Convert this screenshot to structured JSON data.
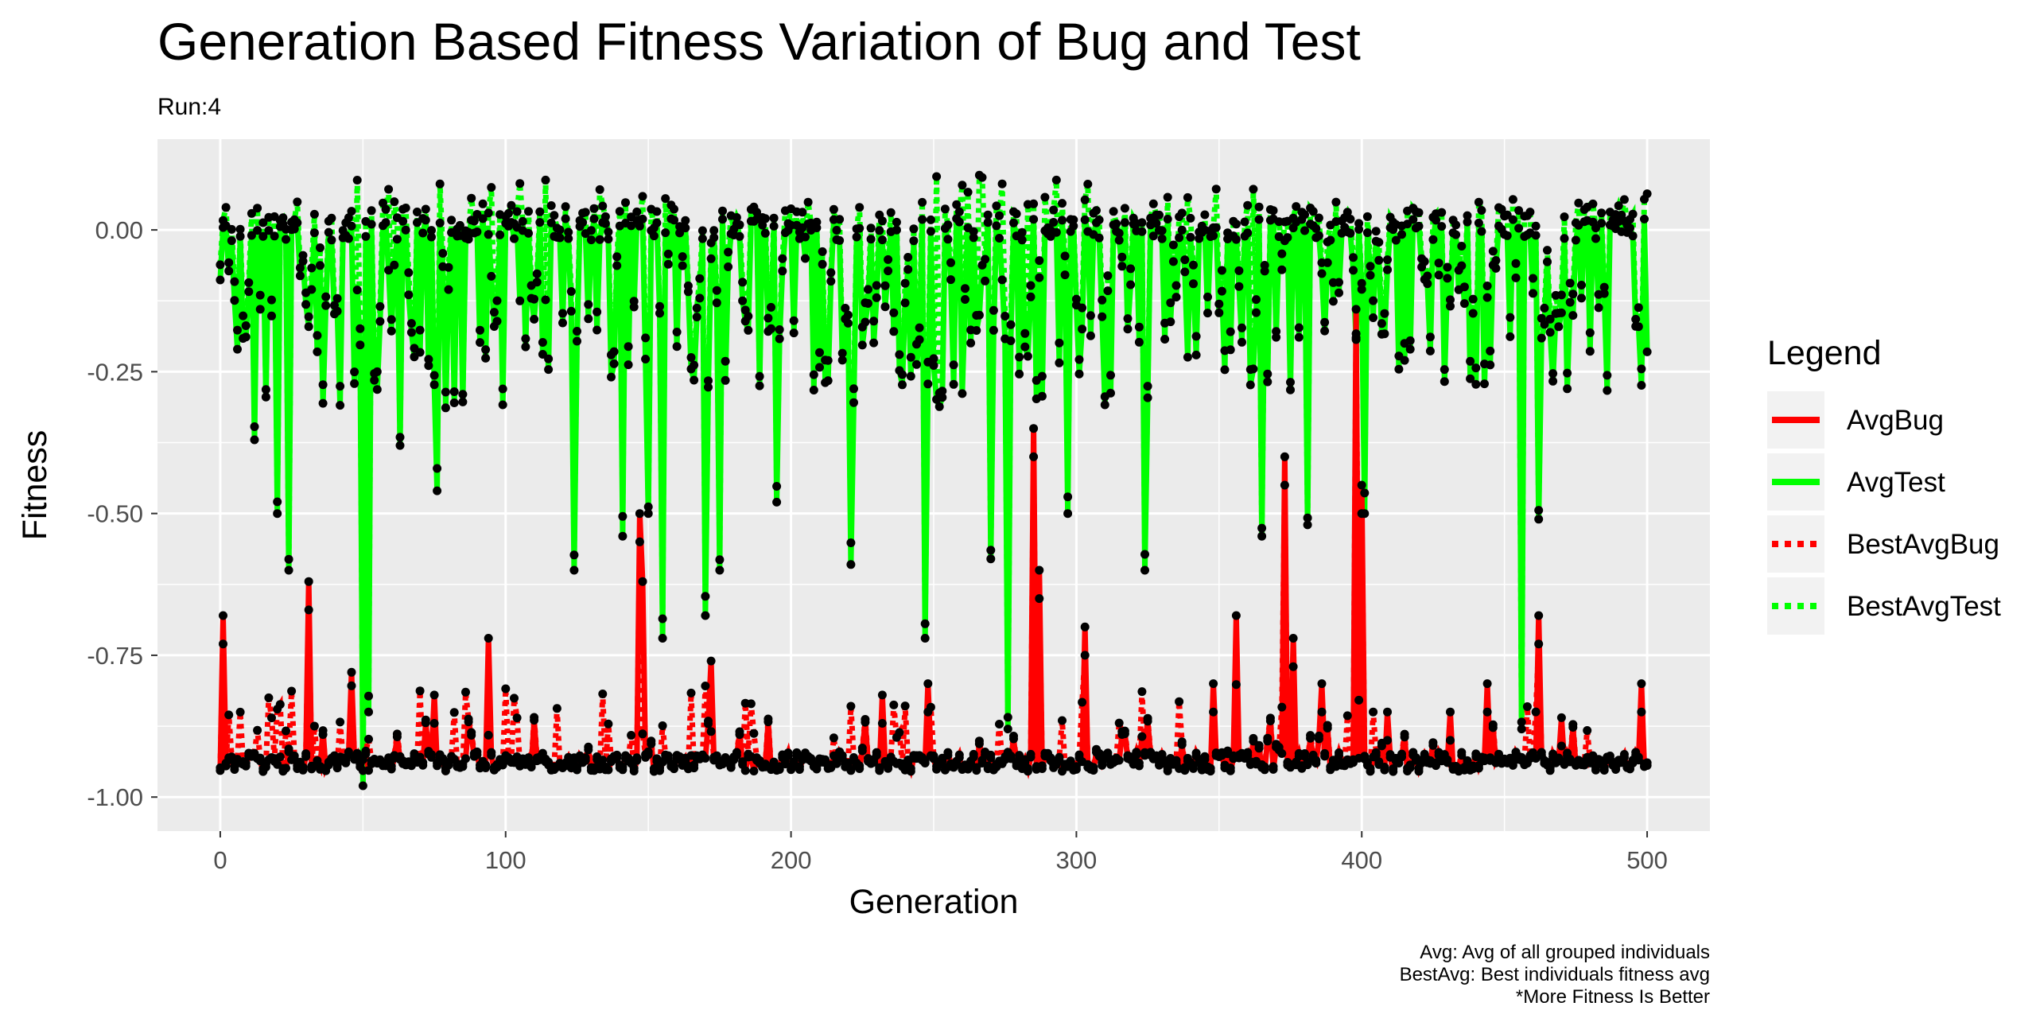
{
  "chart_data": {
    "type": "line",
    "title": "Generation Based Fitness Variation of Bug and Test",
    "subtitle": "Run:4",
    "xlabel": "Generation",
    "ylabel": "Fitness",
    "xlim": [
      -22,
      522
    ],
    "ylim": [
      -1.06,
      0.16
    ],
    "x_ticks": [
      0,
      100,
      200,
      300,
      400,
      500
    ],
    "y_ticks": [
      0.0,
      -0.25,
      -0.5,
      -0.75,
      -1.0
    ],
    "y_tick_labels": [
      "0.00",
      "-0.25",
      "-0.50",
      "-0.75",
      "-1.00"
    ],
    "grid": true,
    "legend": {
      "title": "Legend",
      "position": "right",
      "entries": [
        {
          "name": "AvgBug",
          "color": "#ff0000",
          "style": "solid"
        },
        {
          "name": "AvgTest",
          "color": "#00ff00",
          "style": "solid"
        },
        {
          "name": "BestAvgBug",
          "color": "#ff0000",
          "style": "dotted"
        },
        {
          "name": "BestAvgTest",
          "color": "#00ff00",
          "style": "dotted"
        }
      ]
    },
    "series_generator": {
      "generations": [
        0,
        500
      ],
      "avg_bug_baseline": -0.94,
      "avg_test_baseline": -0.01,
      "point_color": "#000000"
    },
    "spikes": {
      "avg_bug": [
        [
          1,
          -0.68
        ],
        [
          31,
          -0.62
        ],
        [
          46,
          -0.78
        ],
        [
          75,
          -0.82
        ],
        [
          94,
          -0.72
        ],
        [
          147,
          -0.5
        ],
        [
          148,
          -0.62
        ],
        [
          172,
          -0.76
        ],
        [
          232,
          -0.82
        ],
        [
          248,
          -0.8
        ],
        [
          285,
          -0.35
        ],
        [
          287,
          -0.6
        ],
        [
          303,
          -0.7
        ],
        [
          348,
          -0.8
        ],
        [
          356,
          -0.68
        ],
        [
          373,
          -0.4
        ],
        [
          376,
          -0.72
        ],
        [
          386,
          -0.8
        ],
        [
          398,
          -0.14
        ],
        [
          400,
          -0.45
        ],
        [
          409,
          -0.85
        ],
        [
          431,
          -0.85
        ],
        [
          444,
          -0.8
        ],
        [
          462,
          -0.68
        ],
        [
          470,
          -0.86
        ],
        [
          498,
          -0.8
        ]
      ],
      "avg_test": [
        [
          12,
          -0.37
        ],
        [
          20,
          -0.5
        ],
        [
          24,
          -0.6
        ],
        [
          50,
          -0.98
        ],
        [
          52,
          -0.85
        ],
        [
          63,
          -0.38
        ],
        [
          76,
          -0.46
        ],
        [
          124,
          -0.6
        ],
        [
          141,
          -0.54
        ],
        [
          150,
          -0.5
        ],
        [
          155,
          -0.72
        ],
        [
          170,
          -0.68
        ],
        [
          175,
          -0.6
        ],
        [
          195,
          -0.48
        ],
        [
          221,
          -0.59
        ],
        [
          247,
          -0.72
        ],
        [
          270,
          -0.58
        ],
        [
          276,
          -0.88
        ],
        [
          297,
          -0.5
        ],
        [
          324,
          -0.6
        ],
        [
          365,
          -0.54
        ],
        [
          381,
          -0.52
        ],
        [
          401,
          -0.5
        ],
        [
          456,
          -0.88
        ],
        [
          462,
          -0.51
        ]
      ]
    }
  },
  "caption": {
    "lines": [
      "Avg: Avg of all grouped individuals",
      "BestAvg: Best individuals fitness avg",
      "*More Fitness Is Better"
    ]
  }
}
